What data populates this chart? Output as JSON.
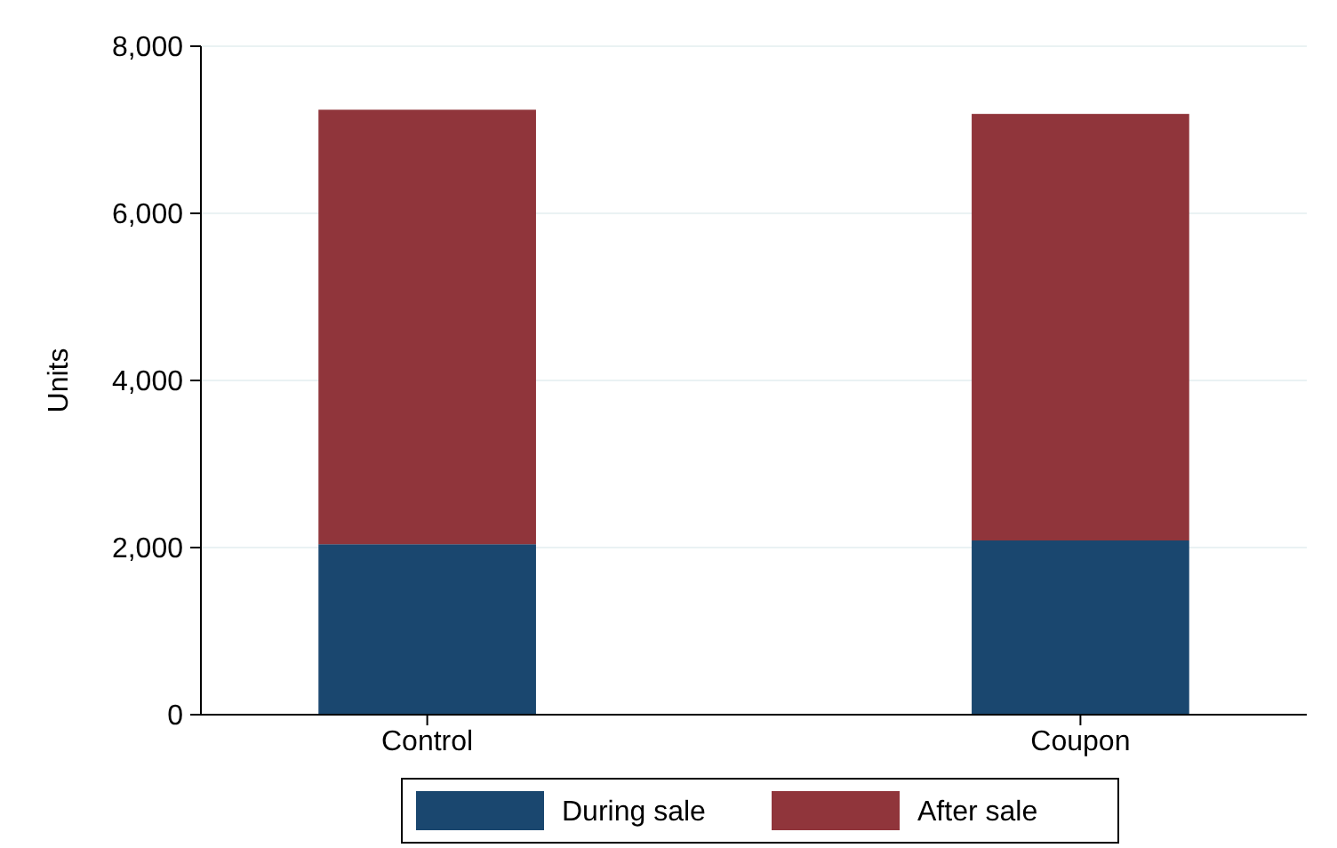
{
  "chart_data": {
    "type": "bar",
    "stacked": true,
    "ylabel": "Units",
    "categories": [
      "Control",
      "Coupon"
    ],
    "series": [
      {
        "name": "During sale",
        "color": "#1a476f",
        "values": [
          2040,
          2085
        ]
      },
      {
        "name": "After sale",
        "color": "#90353b",
        "values": [
          5200,
          5105
        ]
      }
    ],
    "ylim": [
      0,
      8000
    ],
    "yticks": [
      {
        "value": 0,
        "label": "0"
      },
      {
        "value": 2000,
        "label": "2,000"
      },
      {
        "value": 4000,
        "label": "4,000"
      },
      {
        "value": 6000,
        "label": "6,000"
      },
      {
        "value": 8000,
        "label": "8,000"
      }
    ],
    "grid": "y",
    "legend": "bottom"
  }
}
